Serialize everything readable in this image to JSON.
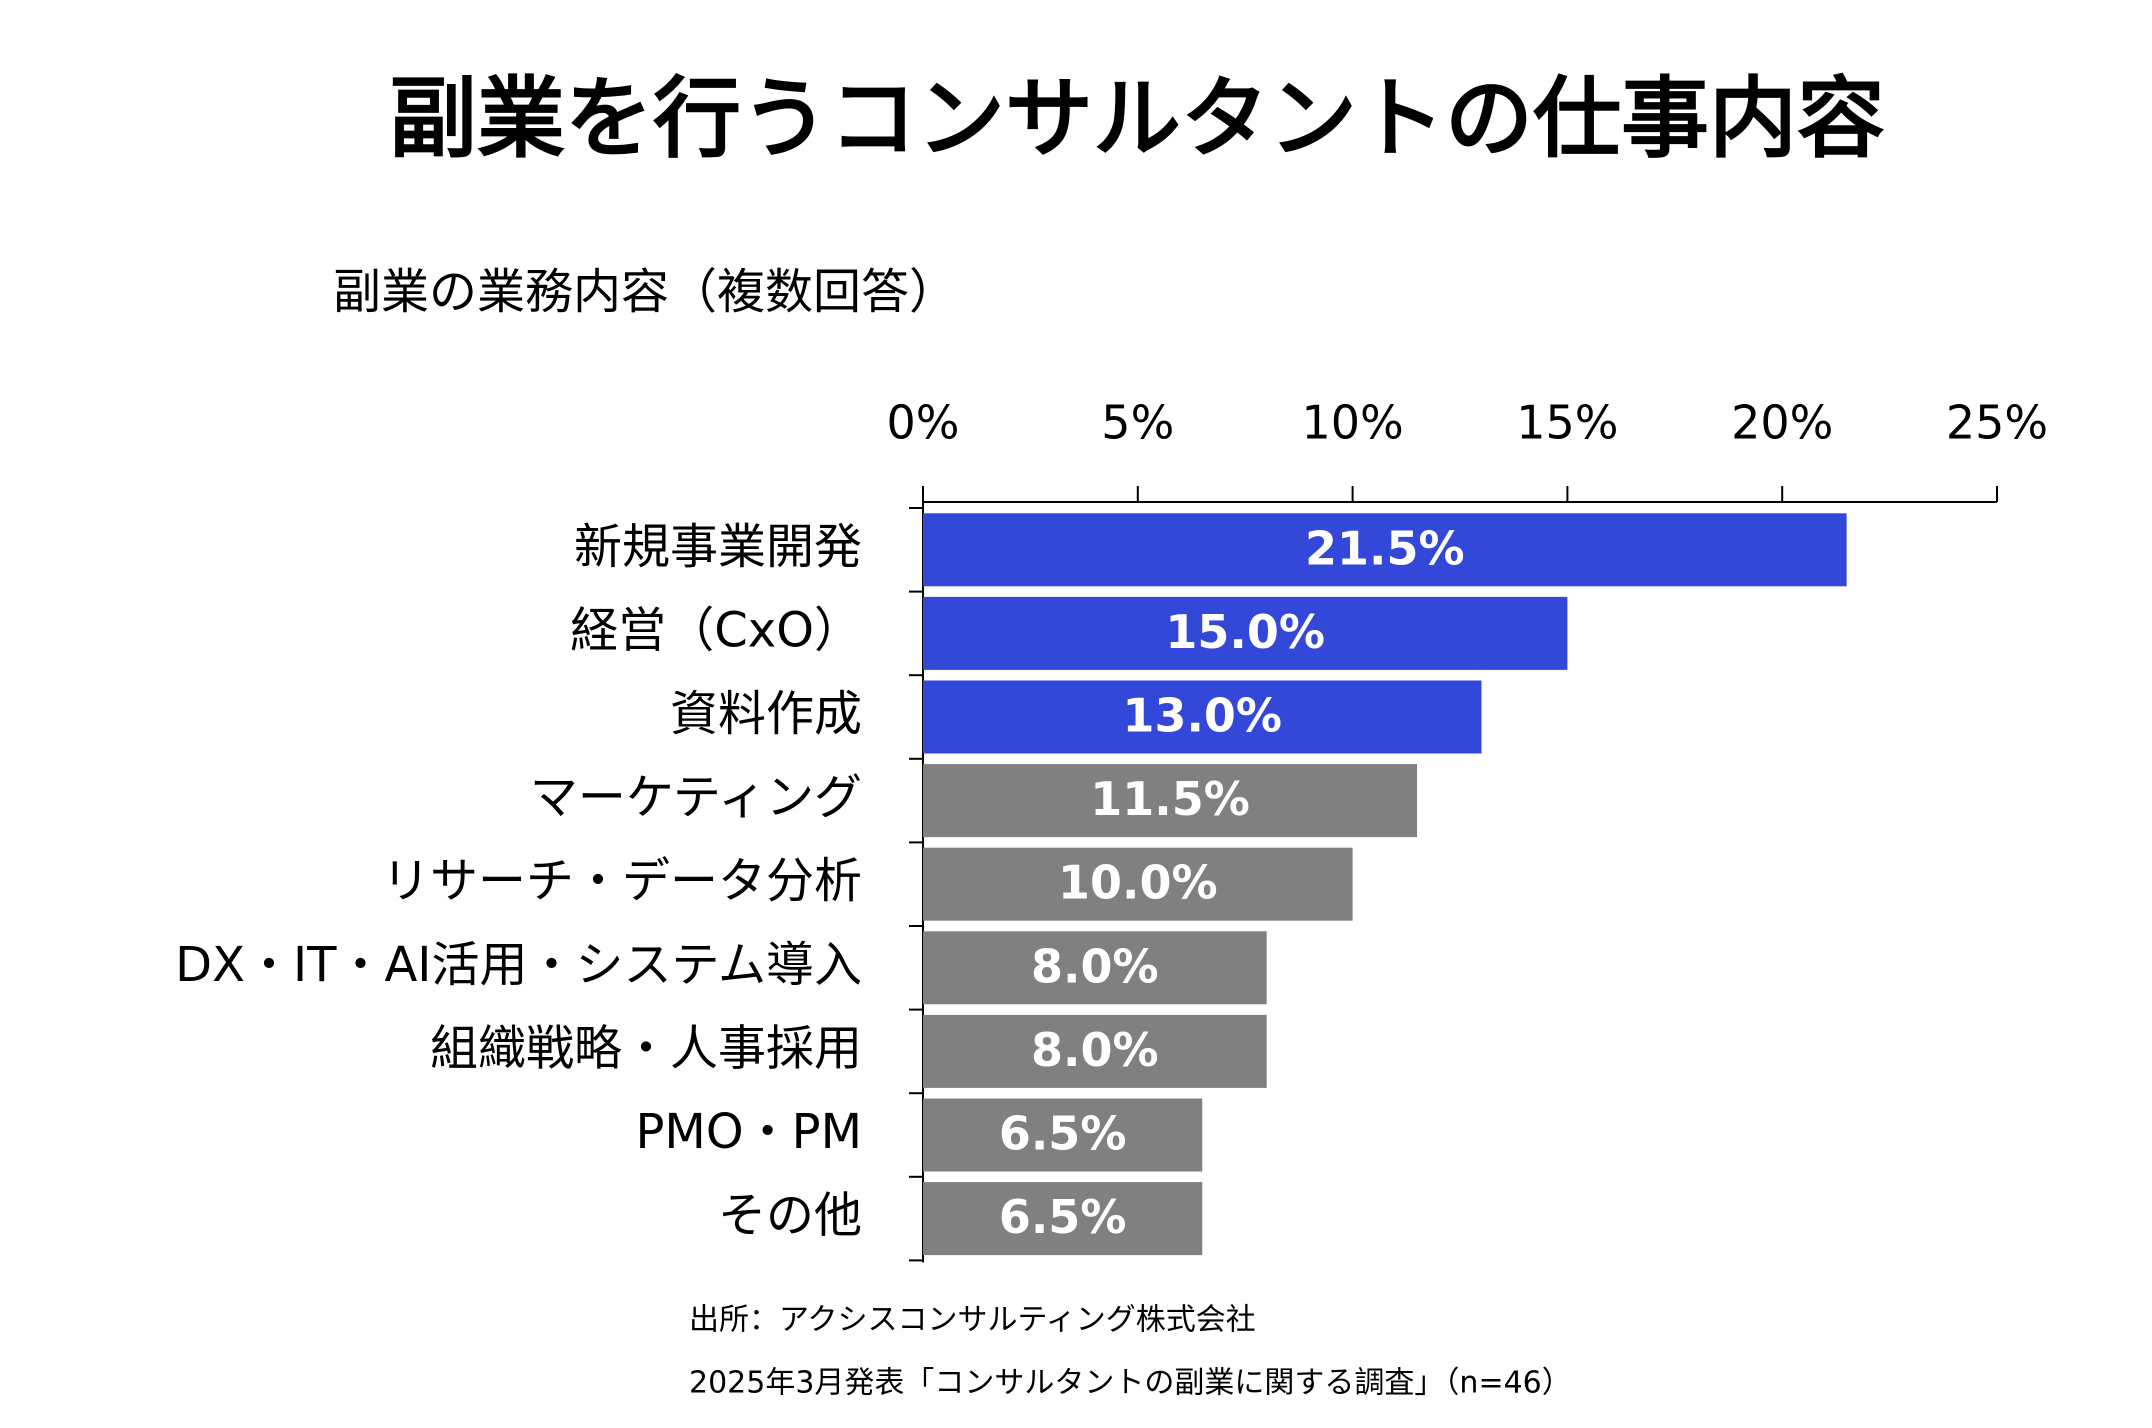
{
  "chart_data": {
    "type": "barh",
    "title": "副業を行うコンサルタントの仕事内容",
    "subtitle": "副業の業務内容（複数回答）",
    "categories": [
      "新規事業開発",
      "経営（CxO）",
      "資料作成",
      "マーケティング",
      "リサーチ・データ分析",
      "DX・IT・AI活用・システム導入",
      "組織戦略・人事採用",
      "PMO・PM",
      "その他"
    ],
    "values": [
      21.5,
      15.0,
      13.0,
      11.5,
      10.0,
      8.0,
      8.0,
      6.5,
      6.5
    ],
    "value_labels": [
      "21.5%",
      "15.0%",
      "13.0%",
      "11.5%",
      "10.0%",
      "8.0%",
      "8.0%",
      "6.5%",
      "6.5%"
    ],
    "colors": [
      "#3347d9",
      "#3347d9",
      "#3347d9",
      "#808080",
      "#808080",
      "#808080",
      "#808080",
      "#808080",
      "#808080"
    ],
    "xlim": [
      0,
      25
    ],
    "xticks": [
      {
        "value": 0,
        "label": "0%"
      },
      {
        "value": 5,
        "label": "5%"
      },
      {
        "value": 10,
        "label": "10%"
      },
      {
        "value": 15,
        "label": "15%"
      },
      {
        "value": 20,
        "label": "20%"
      },
      {
        "value": 25,
        "label": "25%"
      }
    ],
    "footnotes": [
      "出所：アクシスコンサルティング株式会社",
      "2025年3月発表「コンサルタントの副業に関する調査」（n=46）"
    ]
  }
}
